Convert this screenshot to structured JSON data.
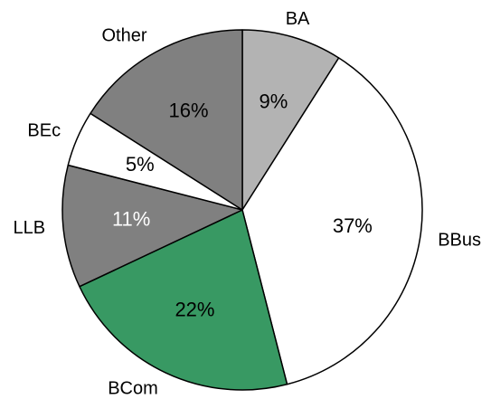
{
  "chart_data": {
    "type": "pie",
    "categories": [
      "BA",
      "BBus",
      "BCom",
      "LLB",
      "BEc",
      "Other"
    ],
    "values": [
      9,
      37,
      22,
      11,
      5,
      16
    ],
    "value_labels": [
      "9%",
      "37%",
      "22%",
      "11%",
      "5%",
      "16%"
    ],
    "colors": [
      "#b3b3b3",
      "#ffffff",
      "#389963",
      "#808080",
      "#ffffff",
      "#808080"
    ],
    "label_colors": [
      "#000000",
      "#000000",
      "#000000",
      "#ffffff",
      "#000000",
      "#000000"
    ]
  }
}
